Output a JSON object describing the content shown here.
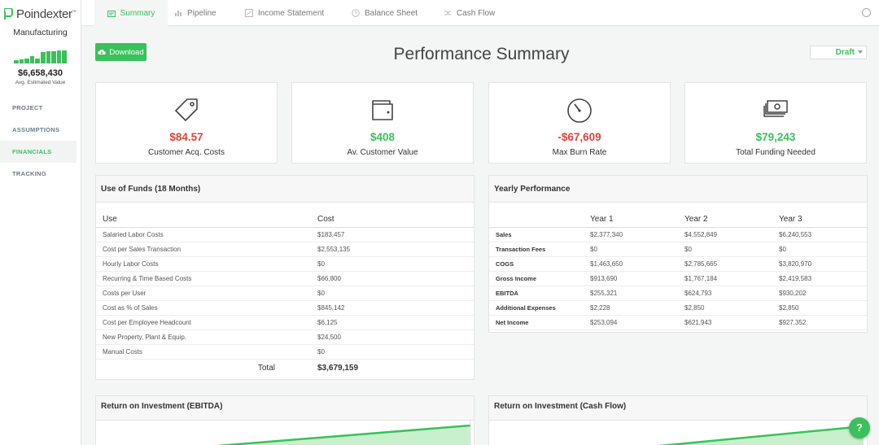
{
  "brand": {
    "name": "Poindexter",
    "tm": "™"
  },
  "sidebar": {
    "industry": "Manufacturing",
    "minibars": [
      0.25,
      0.3,
      0.35,
      0.55,
      0.4,
      0.9,
      0.92,
      0.95,
      0.98,
      1.0
    ],
    "estimated_value": "$6,658,430",
    "estimated_label": "Avg. Estimated Value",
    "nav": [
      {
        "label": "PROJECT",
        "active": false
      },
      {
        "label": "ASSUMPTIONS",
        "active": false
      },
      {
        "label": "FINANCIALS",
        "active": true
      },
      {
        "label": "TRACKING",
        "active": false
      }
    ]
  },
  "tabs": [
    {
      "label": "Summary",
      "icon": "summary-icon",
      "active": true
    },
    {
      "label": "Pipeline",
      "icon": "bar-chart-icon",
      "active": false
    },
    {
      "label": "Income Statement",
      "icon": "document-icon",
      "active": false
    },
    {
      "label": "Balance Sheet",
      "icon": "clock-icon",
      "active": false
    },
    {
      "label": "Cash Flow",
      "icon": "shuffle-icon",
      "active": false
    }
  ],
  "download_label": "Download",
  "page_title": "Performance Summary",
  "status": "Draft",
  "kpis": [
    {
      "value": "$84.57",
      "label": "Customer Acq. Costs",
      "color": "#e8403a",
      "icon": "price-tag-icon"
    },
    {
      "value": "$408",
      "label": "Av. Customer Value",
      "color": "#3ac15b",
      "icon": "wallet-icon"
    },
    {
      "value": "-$67,609",
      "label": "Max Burn Rate",
      "color": "#e8403a",
      "icon": "gauge-icon"
    },
    {
      "value": "$79,243",
      "label": "Total Funding Needed",
      "color": "#3ac15b",
      "icon": "cash-stack-icon"
    }
  ],
  "use_of_funds": {
    "title": "Use of Funds (18 Months)",
    "headers": [
      "Use",
      "Cost"
    ],
    "rows": [
      [
        "Salaried Labor Costs",
        "$183,457"
      ],
      [
        "Cost per Sales Transaction",
        "$2,553,135"
      ],
      [
        "Hourly Labor Costs",
        "$0"
      ],
      [
        "Recurring & Time Based Costs",
        "$66,800"
      ],
      [
        "Costs per User",
        "$0"
      ],
      [
        "Cost as % of Sales",
        "$845,142"
      ],
      [
        "Cost per Employee Headcount",
        "$6,125"
      ],
      [
        "New Property, Plant & Equip.",
        "$24,500"
      ],
      [
        "Manual Costs",
        "$0"
      ]
    ],
    "total_label": "Total",
    "total_value": "$3,679,159"
  },
  "yearly": {
    "title": "Yearly Performance",
    "headers": [
      "",
      "Year 1",
      "Year 2",
      "Year 3"
    ],
    "rows": [
      [
        "Sales",
        "$2,377,340",
        "$4,552,849",
        "$6,240,553"
      ],
      [
        "Transaction Fees",
        "$0",
        "$0",
        "$0"
      ],
      [
        "COGS",
        "$1,463,650",
        "$2,785,665",
        "$3,820,970"
      ],
      [
        "Gross Income",
        "$913,690",
        "$1,767,184",
        "$2,419,583"
      ],
      [
        "EBITDA",
        "$255,321",
        "$624,793",
        "$930,202"
      ],
      [
        "Additional Expenses",
        "$2,228",
        "$2,850",
        "$2,850"
      ],
      [
        "Net Income",
        "$253,094",
        "$621,943",
        "$927,352"
      ]
    ]
  },
  "roi_ebitda_title": "Return on Investment (EBITDA)",
  "roi_cash_title": "Return on Investment (Cash Flow)",
  "help_label": "?"
}
